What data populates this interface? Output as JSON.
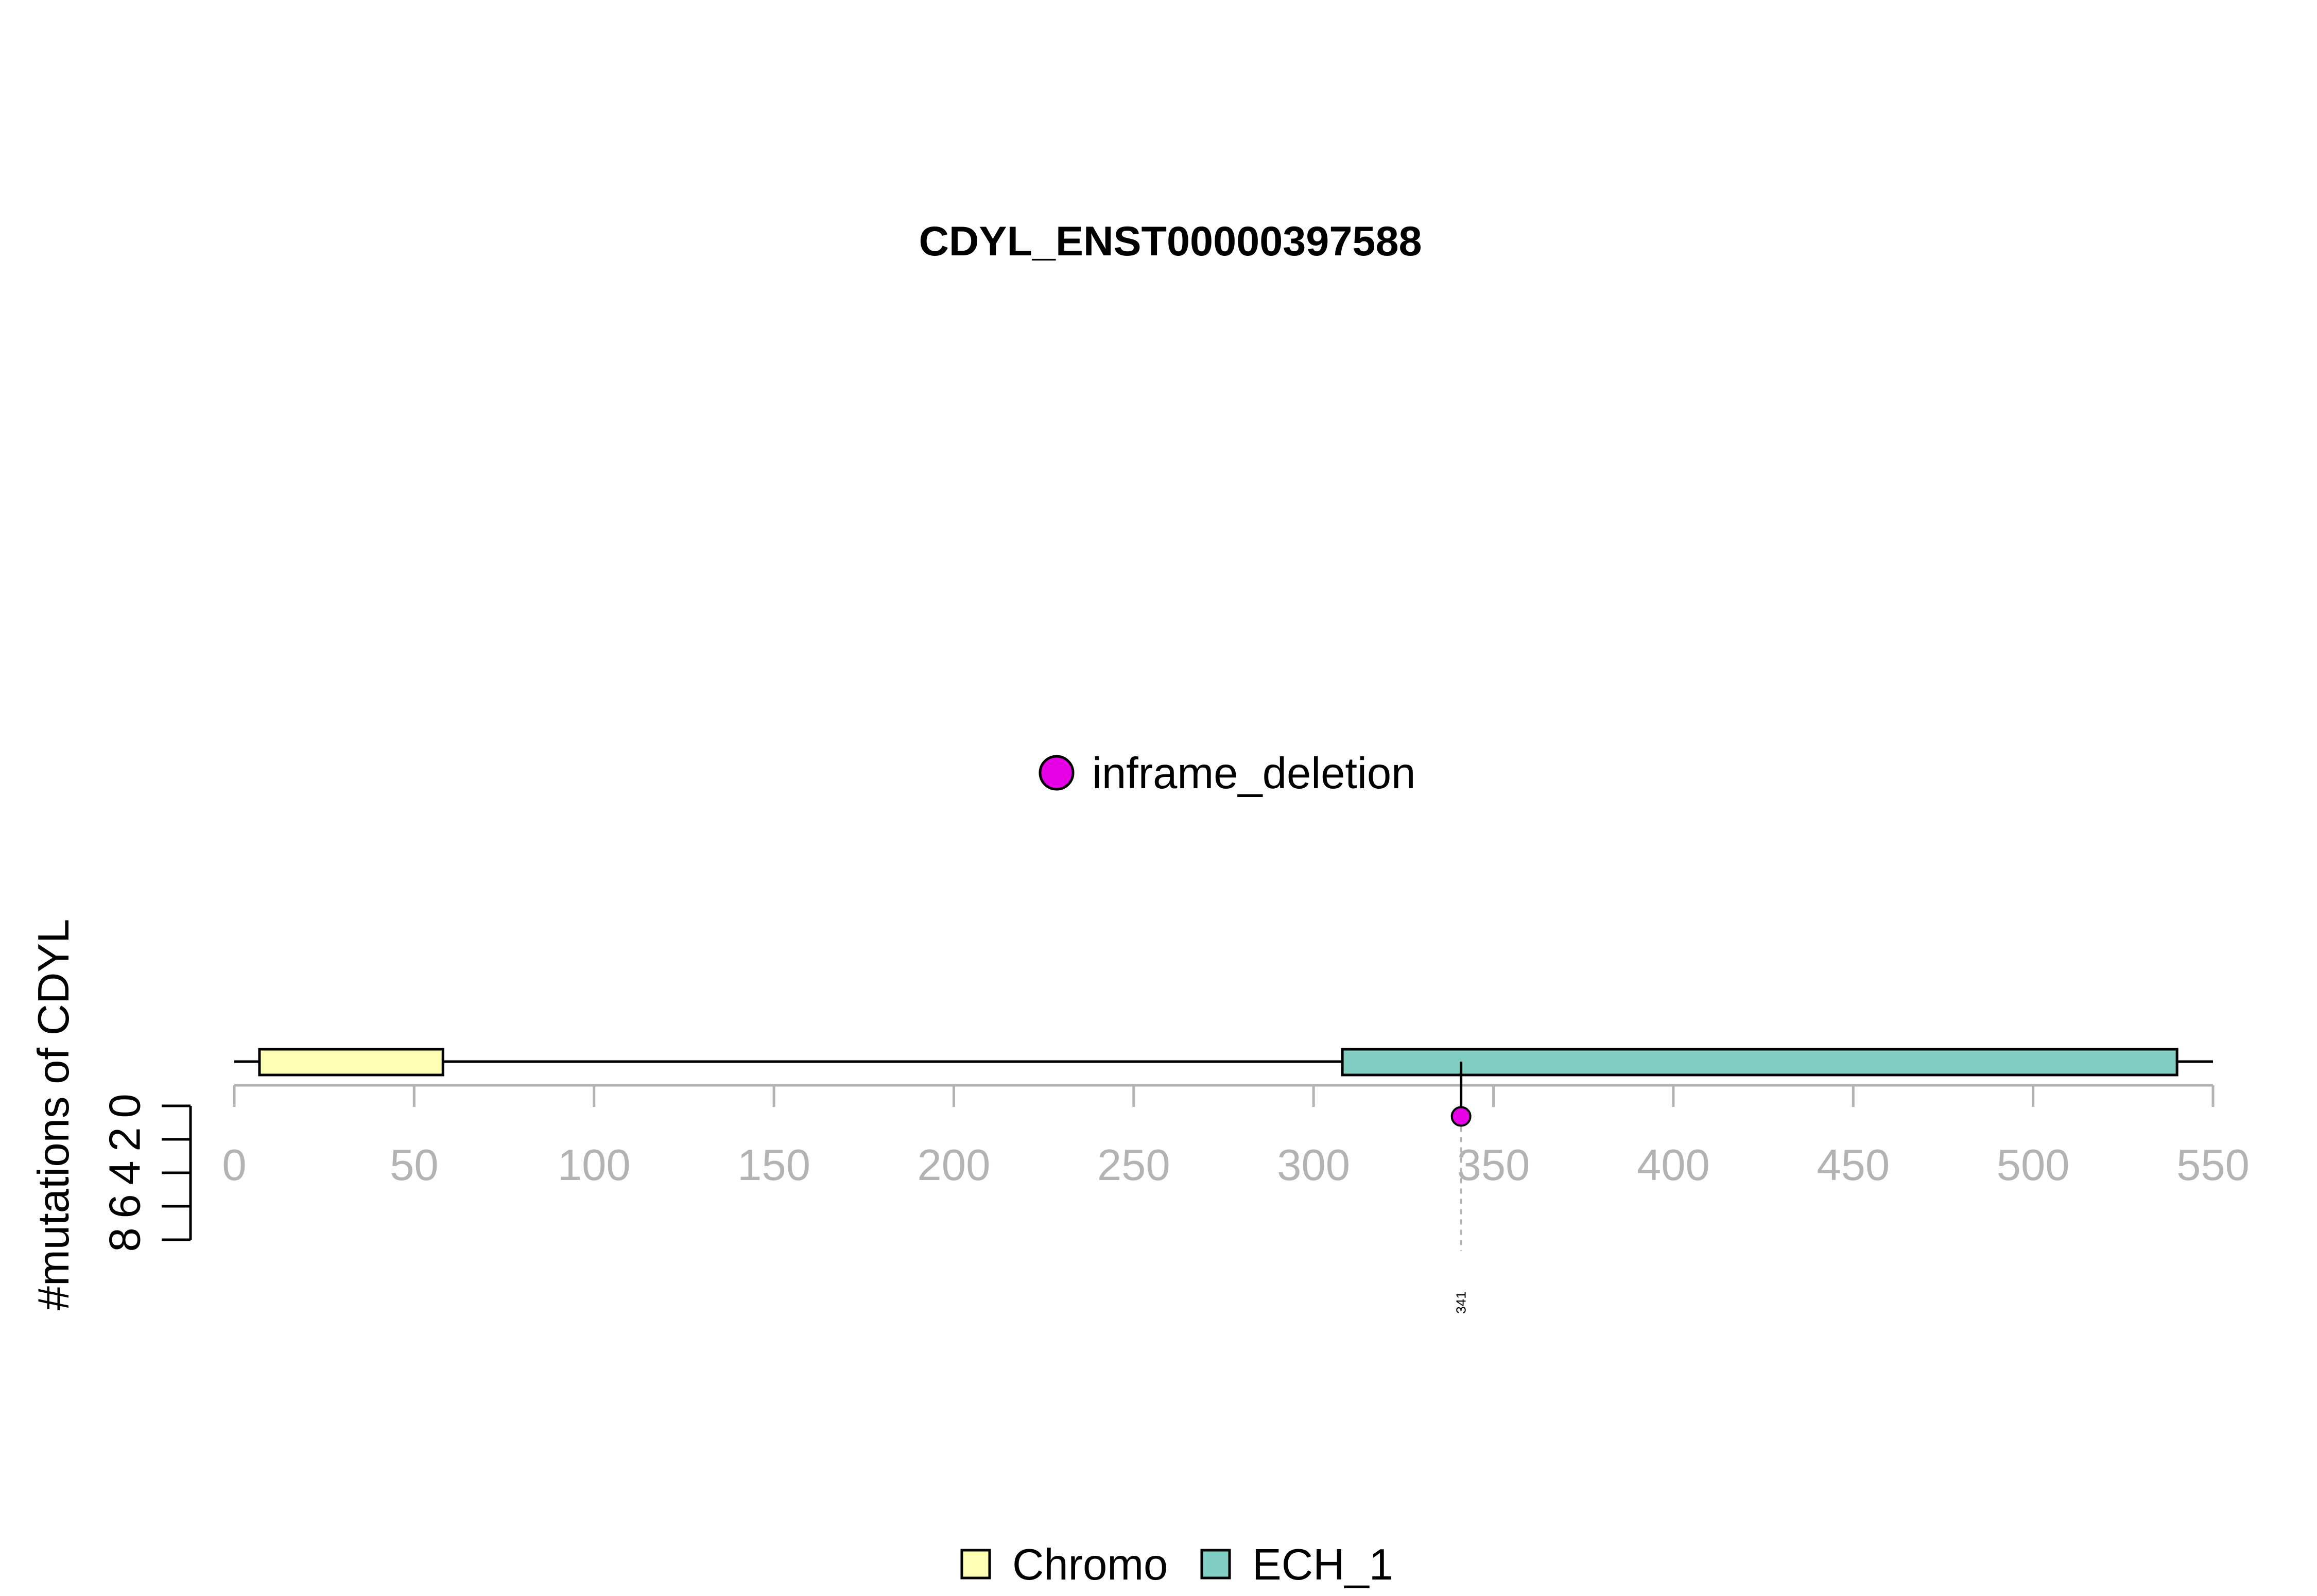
{
  "chart_data": {
    "type": "scatter",
    "title": "CDYL_ENST00000397588",
    "protein_length": 550,
    "xlim": [
      0,
      550
    ],
    "x_ticks": [
      0,
      50,
      100,
      150,
      200,
      250,
      300,
      350,
      400,
      450,
      500,
      550
    ],
    "ylabel": "#mutations of CDYL",
    "ylim": [
      0,
      8
    ],
    "y_ticks": [
      0,
      2,
      4,
      6,
      8
    ],
    "domains": [
      {
        "name": "Chromo",
        "start": 7,
        "end": 58,
        "color": "#ffffb3"
      },
      {
        "name": "ECH_1",
        "start": 308,
        "end": 540,
        "color": "#80cdc1"
      }
    ],
    "mutation_types": [
      {
        "name": "inframe_deletion",
        "color": "#e600e6"
      }
    ],
    "mutations": [
      {
        "position": 341,
        "count": 1,
        "type": "inframe_deletion",
        "label": "341"
      }
    ],
    "legend_position": "bottom"
  }
}
